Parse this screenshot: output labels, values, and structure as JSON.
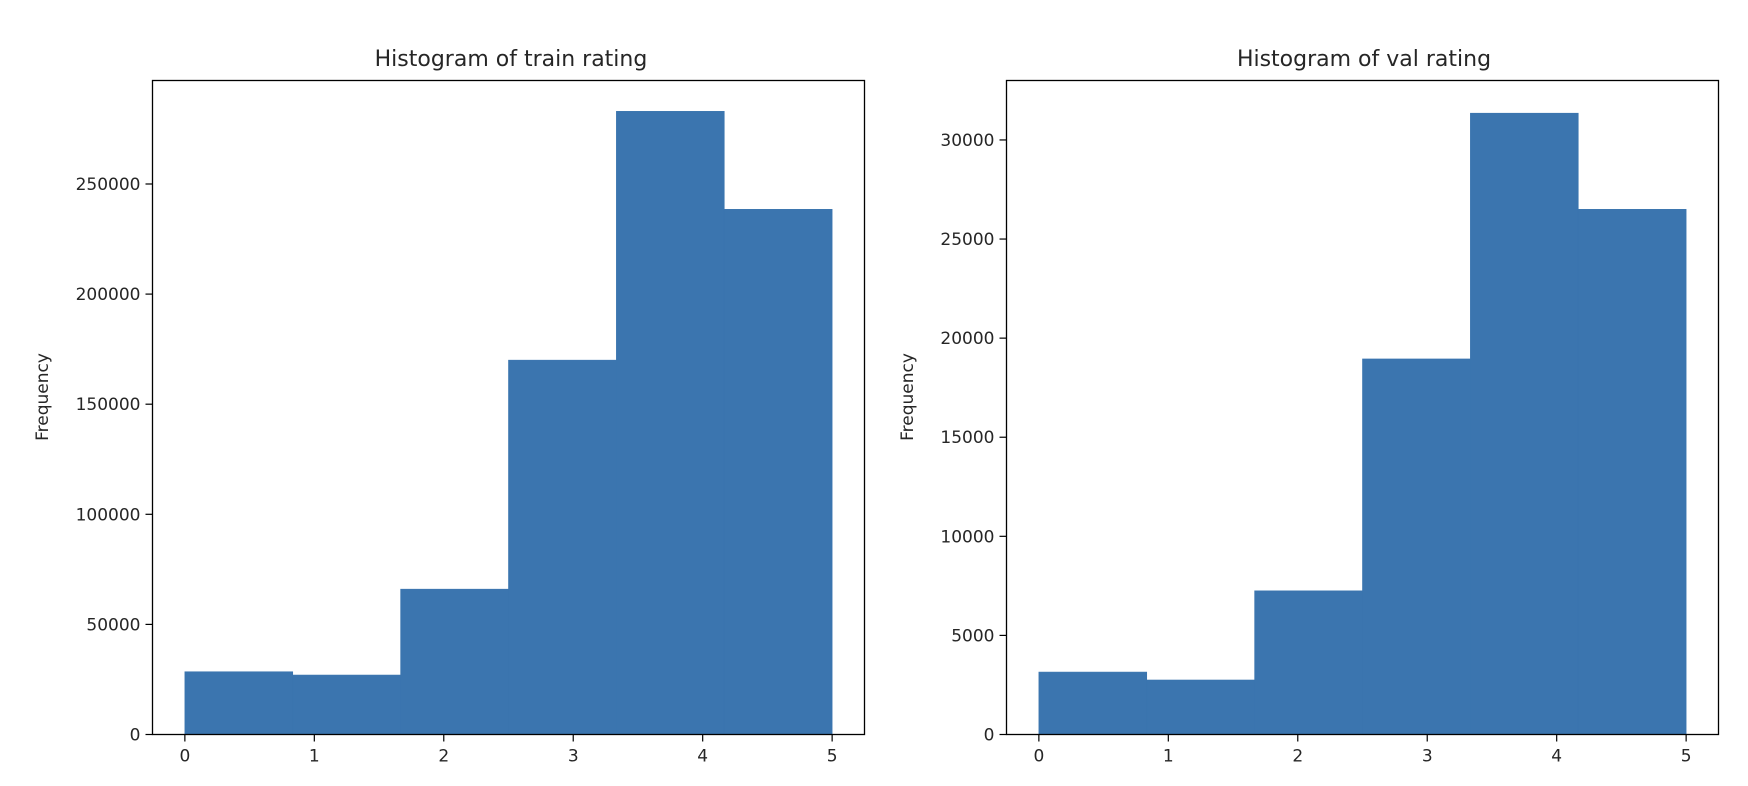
{
  "chart_data": [
    {
      "type": "bar",
      "subtype": "histogram",
      "title": "Histogram of train rating",
      "xlabel": "",
      "ylabel": "Frequency",
      "bin_edges": [
        0,
        0.8333,
        1.6667,
        2.5,
        3.3333,
        4.1667,
        5
      ],
      "values": [
        28500,
        27000,
        66000,
        170000,
        283000,
        238500
      ],
      "xlim": [
        -0.25,
        5.25
      ],
      "ylim": [
        0,
        297000
      ],
      "xticks": [
        0,
        1,
        2,
        3,
        4,
        5
      ],
      "yticks": [
        0,
        50000,
        100000,
        150000,
        200000,
        250000
      ],
      "grid": false,
      "color": "#3b75af"
    },
    {
      "type": "bar",
      "subtype": "histogram",
      "title": "Histogram of val rating",
      "xlabel": "",
      "ylabel": "Frequency",
      "bin_edges": [
        0,
        0.8333,
        1.6667,
        2.5,
        3.3333,
        4.1667,
        5
      ],
      "values": [
        3150,
        2750,
        7250,
        18950,
        31350,
        26500
      ],
      "xlim": [
        -0.25,
        5.25
      ],
      "ylim": [
        0,
        33000
      ],
      "xticks": [
        0,
        1,
        2,
        3,
        4,
        5
      ],
      "yticks": [
        0,
        5000,
        10000,
        15000,
        20000,
        25000,
        30000
      ],
      "grid": false,
      "color": "#3b75af"
    }
  ]
}
